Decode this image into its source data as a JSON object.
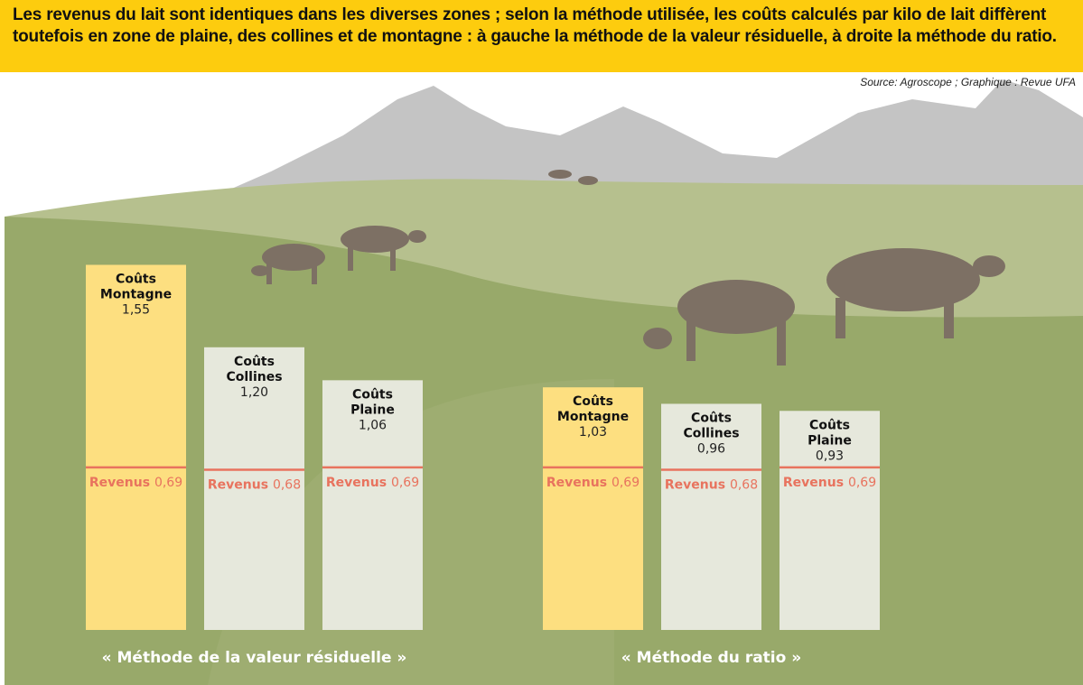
{
  "header": {
    "text": "Les revenus du lait sont identiques dans les diverses zones ; selon la méthode utilisée, les coûts calculés par kilo de lait diffèrent toutefois en zone de plaine, des collines et de montagne : à gauche la méthode de la valeur résiduelle, à droite la méthode du ratio."
  },
  "source": "Source: Agroscope ; Graphique : Revue UFA",
  "colors": {
    "header": "#fdcc0e",
    "montagne_bar": "#fddf80",
    "other_bar": "#e6e8dc",
    "revenus": "#e8735e",
    "mountains": "#c4c4c4",
    "grass_light": "#b6c08e",
    "grass_dark": "#98a96a",
    "cow": "#7d7064"
  },
  "chart_data": {
    "type": "bar",
    "cost_label": "Coûts",
    "revenue_label": "Revenus",
    "groups": [
      {
        "title": "« Méthode de la valeur résiduelle »",
        "bars": [
          {
            "zone": "Montagne",
            "cost": 1.55,
            "cost_text": "1,55",
            "revenue": 0.69,
            "revenue_text": "0,69"
          },
          {
            "zone": "Collines",
            "cost": 1.2,
            "cost_text": "1,20",
            "revenue": 0.68,
            "revenue_text": "0,68"
          },
          {
            "zone": "Plaine",
            "cost": 1.06,
            "cost_text": "1,06",
            "revenue": 0.69,
            "revenue_text": "0,69"
          }
        ]
      },
      {
        "title": "« Méthode du ratio »",
        "bars": [
          {
            "zone": "Montagne",
            "cost": 1.03,
            "cost_text": "1,03",
            "revenue": 0.69,
            "revenue_text": "0,69"
          },
          {
            "zone": "Collines",
            "cost": 0.96,
            "cost_text": "0,96",
            "revenue": 0.68,
            "revenue_text": "0,68"
          },
          {
            "zone": "Plaine",
            "cost": 0.93,
            "cost_text": "0,93",
            "revenue": 0.69,
            "revenue_text": "0,69"
          }
        ]
      }
    ]
  }
}
